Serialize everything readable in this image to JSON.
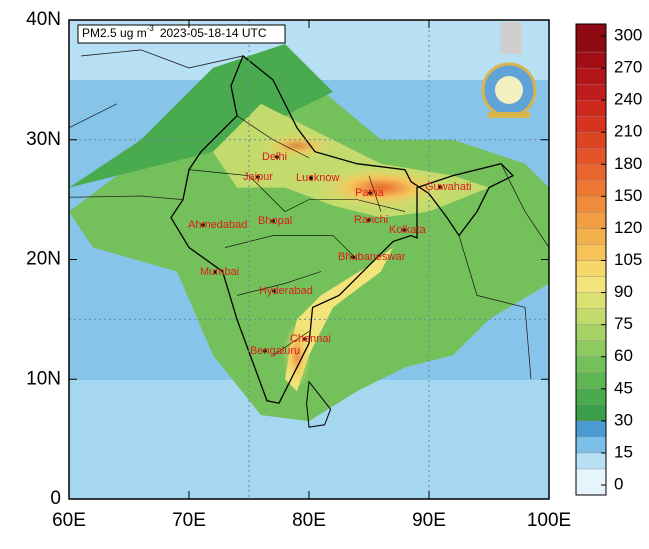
{
  "map": {
    "title": {
      "variable": "PM2.5 ug m",
      "exponent": "-3",
      "time": "2023-05-18-14 UTC"
    },
    "lon_ticks": [
      {
        "value": 60,
        "label": "60E"
      },
      {
        "value": 70,
        "label": "70E"
      },
      {
        "value": 80,
        "label": "80E"
      },
      {
        "value": 90,
        "label": "90E"
      },
      {
        "value": 100,
        "label": "100E"
      }
    ],
    "lat_ticks": [
      0,
      {
        "value": 10,
        "label": "10N"
      },
      {
        "value": 20,
        "label": "20N"
      },
      {
        "value": 30,
        "label": "30N"
      },
      {
        "value": 40,
        "label": "40N"
      }
    ],
    "xlim": [
      60,
      100
    ],
    "ylim": [
      0,
      40
    ],
    "grid_lon": [
      75,
      90
    ],
    "grid_lat": [
      15,
      30
    ],
    "cities": [
      "Delhi",
      "Jaipur",
      "Lucknow",
      "Patna",
      "Guwahati",
      "Ahmedabad",
      "Bhopal",
      "Ranchi",
      "Kolkata",
      "Mumbai",
      "Bhubaneswar",
      "Hyderabad",
      "Chennai",
      "Bengaluru"
    ],
    "colorbar": {
      "ticks": [
        0,
        15,
        30,
        45,
        60,
        75,
        90,
        105,
        120,
        150,
        180,
        210,
        240,
        270,
        300
      ],
      "colors": [
        "#e6f5fc",
        "#b7e0f5",
        "#7cc0ea",
        "#4a9bd4",
        "#3b9e4a",
        "#4aab4e",
        "#5db653",
        "#74c05a",
        "#8dca5f",
        "#a6d266",
        "#c2db6c",
        "#dbe173",
        "#f2e47b",
        "#f7d66a",
        "#f6c35a",
        "#f4b04d",
        "#f29e43",
        "#ef8b3b",
        "#ec7833",
        "#e8662d",
        "#e35428",
        "#dd4424",
        "#d63421",
        "#cc281e",
        "#c01c1b",
        "#b31418",
        "#a30e16",
        "#8e0a13"
      ]
    }
  }
}
